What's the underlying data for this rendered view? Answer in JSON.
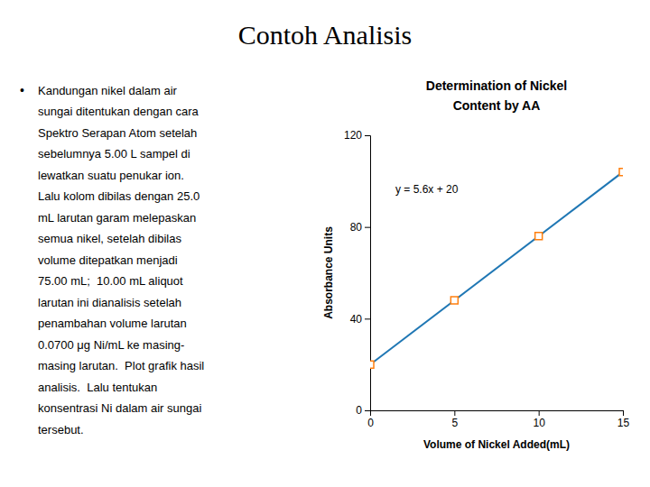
{
  "chart_data": {
    "type": "scatter",
    "title": "Contoh Analisis",
    "notes": {
      "bullet": "•",
      "lines": [
        "Kandungan nikel dalam air",
        "sungai ditentukan dengan cara",
        "Spektro Serapan Atom setelah",
        "sebelumnya 5.00 L sampel di",
        "lewatkan suatu penukar ion.",
        "Lalu kolom dibilas dengan 25.0",
        "mL larutan garam melepaskan",
        "semua nikel, setelah dibilas",
        "volume ditepatkan menjadi",
        "75.00 mL;  10.00 mL aliquot",
        "larutan ini dianalisis setelah",
        "penambahan volume larutan",
        "0.0700 μg Ni/mL ke masing-",
        "masing larutan.  Plot grafik hasil",
        "analisis.  Lalu tentukan",
        "konsentrasi Ni dalam air sungai",
        "tersebut."
      ]
    },
    "subtitle": [
      "Determination of Nickel",
      "Content by AA"
    ],
    "x_label": "Volume of Nickel Added(mL)",
    "y_label": "Absorbance Units",
    "annotations": [
      {
        "text": "y = 5.6x + 20",
        "x": 1.5,
        "y": 95
      }
    ],
    "series": [
      {
        "type": "line",
        "line_style": "solid",
        "x": [
          0,
          15
        ],
        "values": [
          20,
          104
        ]
      },
      {
        "type": "scatter",
        "marker": "square",
        "x": [
          0,
          5,
          10,
          15
        ],
        "values": [
          20,
          48,
          76,
          104
        ]
      }
    ],
    "xlim": [
      0,
      15
    ],
    "ylim": [
      0,
      120
    ],
    "xticks": [
      0,
      5,
      10,
      15
    ],
    "yticks": [
      0,
      40,
      80,
      120
    ],
    "grid": false
  }
}
